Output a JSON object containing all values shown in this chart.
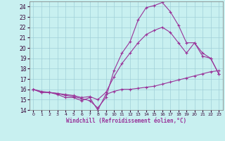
{
  "xlabel": "Windchill (Refroidissement éolien,°C)",
  "bg_color": "#c8f0f0",
  "grid_color": "#a0d0d8",
  "line_color": "#993399",
  "xlim": [
    -0.5,
    23.5
  ],
  "ylim": [
    14,
    24.5
  ],
  "yticks": [
    14,
    15,
    16,
    17,
    18,
    19,
    20,
    21,
    22,
    23,
    24
  ],
  "xticks": [
    0,
    1,
    2,
    3,
    4,
    5,
    6,
    7,
    8,
    9,
    10,
    11,
    12,
    13,
    14,
    15,
    16,
    17,
    18,
    19,
    20,
    21,
    22,
    23
  ],
  "line1_x": [
    0,
    1,
    2,
    3,
    4,
    5,
    6,
    7,
    8,
    9,
    10,
    11,
    12,
    13,
    14,
    15,
    16,
    17,
    18,
    19,
    20,
    21,
    22,
    23
  ],
  "line1_y": [
    16.0,
    15.7,
    15.7,
    15.5,
    15.2,
    15.2,
    14.9,
    15.2,
    14.0,
    15.5,
    15.8,
    16.0,
    16.0,
    16.1,
    16.2,
    16.3,
    16.5,
    16.7,
    16.9,
    17.1,
    17.3,
    17.5,
    17.7,
    17.8
  ],
  "line2_x": [
    0,
    1,
    2,
    3,
    4,
    5,
    6,
    7,
    8,
    9,
    10,
    11,
    12,
    13,
    14,
    15,
    16,
    17,
    18,
    19,
    20,
    21,
    22,
    23
  ],
  "line2_y": [
    16.0,
    15.7,
    15.7,
    15.6,
    15.4,
    15.3,
    15.1,
    14.9,
    14.2,
    15.2,
    17.8,
    19.5,
    20.6,
    22.7,
    23.9,
    24.1,
    24.4,
    23.5,
    22.2,
    20.5,
    20.5,
    19.2,
    19.0,
    17.5
  ],
  "line3_x": [
    0,
    1,
    2,
    3,
    4,
    5,
    6,
    7,
    8,
    9,
    10,
    11,
    12,
    13,
    14,
    15,
    16,
    17,
    18,
    19,
    20,
    21,
    22,
    23
  ],
  "line3_y": [
    16.0,
    15.8,
    15.7,
    15.6,
    15.5,
    15.4,
    15.2,
    15.3,
    15.0,
    15.7,
    17.2,
    18.5,
    19.5,
    20.5,
    21.3,
    21.7,
    22.0,
    21.5,
    20.5,
    19.5,
    20.5,
    19.5,
    19.0,
    17.5
  ],
  "marker": "+",
  "markersize": 3,
  "linewidth": 0.8
}
